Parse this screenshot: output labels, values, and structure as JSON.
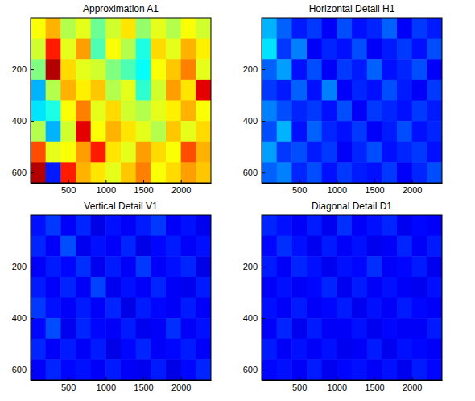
{
  "chart_data": [
    {
      "type": "heatmap",
      "title": "Approximation A1",
      "x": [
        100,
        300,
        500,
        700,
        900,
        1100,
        1300,
        1500,
        1700,
        1900,
        2100,
        2300
      ],
      "y": [
        40,
        120,
        200,
        280,
        360,
        440,
        520,
        600
      ],
      "values": [
        [
          0.62,
          0.7,
          0.55,
          0.6,
          0.48,
          0.58,
          0.65,
          0.52,
          0.6,
          0.55,
          0.62,
          0.58
        ],
        [
          0.58,
          0.85,
          0.6,
          0.72,
          0.45,
          0.62,
          0.55,
          0.4,
          0.66,
          0.6,
          0.7,
          0.64
        ],
        [
          0.5,
          0.95,
          0.66,
          0.6,
          0.58,
          0.5,
          0.45,
          0.38,
          0.62,
          0.68,
          0.75,
          0.6
        ],
        [
          0.3,
          0.55,
          0.7,
          0.64,
          0.68,
          0.55,
          0.6,
          0.42,
          0.58,
          0.72,
          0.65,
          0.9
        ],
        [
          0.35,
          0.4,
          0.62,
          0.75,
          0.6,
          0.66,
          0.58,
          0.55,
          0.6,
          0.64,
          0.7,
          0.62
        ],
        [
          0.55,
          0.3,
          0.58,
          0.9,
          0.62,
          0.7,
          0.65,
          0.6,
          0.55,
          0.68,
          0.6,
          0.66
        ],
        [
          0.8,
          0.6,
          0.62,
          0.72,
          0.85,
          0.65,
          0.6,
          0.72,
          0.66,
          0.62,
          0.8,
          0.7
        ],
        [
          0.95,
          0.15,
          0.85,
          0.7,
          0.65,
          0.6,
          0.68,
          0.75,
          0.62,
          0.66,
          0.72,
          0.68
        ]
      ],
      "xlim": [
        0,
        2400
      ],
      "ylim": [
        0,
        640
      ],
      "xticks": [
        500,
        1000,
        1500,
        2000
      ],
      "yticks": [
        200,
        400,
        600
      ],
      "clim": [
        0,
        1
      ]
    },
    {
      "type": "heatmap",
      "title": "Horizontal Detail H1",
      "x": [
        100,
        300,
        500,
        700,
        900,
        1100,
        1300,
        1500,
        1700,
        1900,
        2100,
        2300
      ],
      "y": [
        40,
        120,
        200,
        280,
        360,
        440,
        520,
        600
      ],
      "values": [
        [
          0.3,
          0.22,
          0.15,
          0.18,
          0.12,
          0.2,
          0.14,
          0.16,
          0.22,
          0.12,
          0.18,
          0.15
        ],
        [
          0.35,
          0.18,
          0.25,
          0.12,
          0.16,
          0.14,
          0.2,
          0.12,
          0.15,
          0.18,
          0.14,
          0.2
        ],
        [
          0.22,
          0.28,
          0.14,
          0.2,
          0.12,
          0.18,
          0.15,
          0.22,
          0.14,
          0.16,
          0.2,
          0.12
        ],
        [
          0.18,
          0.15,
          0.22,
          0.14,
          0.25,
          0.12,
          0.16,
          0.14,
          0.2,
          0.15,
          0.12,
          0.18
        ],
        [
          0.25,
          0.2,
          0.16,
          0.18,
          0.14,
          0.2,
          0.12,
          0.18,
          0.16,
          0.14,
          0.18,
          0.15
        ],
        [
          0.2,
          0.3,
          0.14,
          0.22,
          0.16,
          0.14,
          0.18,
          0.12,
          0.15,
          0.2,
          0.14,
          0.16
        ],
        [
          0.28,
          0.18,
          0.2,
          0.15,
          0.18,
          0.12,
          0.16,
          0.2,
          0.14,
          0.16,
          0.18,
          0.14
        ],
        [
          0.22,
          0.25,
          0.16,
          0.2,
          0.14,
          0.18,
          0.15,
          0.14,
          0.18,
          0.12,
          0.16,
          0.2
        ]
      ],
      "xlim": [
        0,
        2400
      ],
      "ylim": [
        0,
        640
      ],
      "xticks": [
        500,
        1000,
        1500,
        2000
      ],
      "yticks": [
        200,
        400,
        600
      ],
      "clim": [
        0,
        1
      ]
    },
    {
      "type": "heatmap",
      "title": "Vertical Detail V1",
      "x": [
        100,
        300,
        500,
        700,
        900,
        1100,
        1300,
        1500,
        1700,
        1900,
        2100,
        2300
      ],
      "y": [
        40,
        120,
        200,
        280,
        360,
        440,
        520,
        600
      ],
      "values": [
        [
          0.14,
          0.18,
          0.12,
          0.16,
          0.1,
          0.14,
          0.12,
          0.15,
          0.18,
          0.12,
          0.14,
          0.11
        ],
        [
          0.16,
          0.12,
          0.2,
          0.11,
          0.14,
          0.12,
          0.16,
          0.1,
          0.13,
          0.15,
          0.12,
          0.14
        ],
        [
          0.12,
          0.15,
          0.13,
          0.17,
          0.11,
          0.15,
          0.12,
          0.18,
          0.12,
          0.14,
          0.16,
          0.1
        ],
        [
          0.15,
          0.12,
          0.16,
          0.12,
          0.19,
          0.11,
          0.14,
          0.12,
          0.16,
          0.12,
          0.11,
          0.15
        ],
        [
          0.18,
          0.14,
          0.12,
          0.15,
          0.12,
          0.16,
          0.1,
          0.15,
          0.13,
          0.12,
          0.15,
          0.12
        ],
        [
          0.13,
          0.2,
          0.11,
          0.16,
          0.13,
          0.12,
          0.15,
          0.11,
          0.12,
          0.17,
          0.12,
          0.14
        ],
        [
          0.16,
          0.12,
          0.15,
          0.12,
          0.15,
          0.1,
          0.13,
          0.16,
          0.12,
          0.13,
          0.15,
          0.12
        ],
        [
          0.12,
          0.16,
          0.13,
          0.14,
          0.12,
          0.15,
          0.12,
          0.11,
          0.15,
          0.1,
          0.13,
          0.16
        ]
      ],
      "xlim": [
        0,
        2400
      ],
      "ylim": [
        0,
        640
      ],
      "xticks": [
        500,
        1000,
        1500,
        2000
      ],
      "yticks": [
        200,
        400,
        600
      ],
      "clim": [
        0,
        1
      ]
    },
    {
      "type": "heatmap",
      "title": "Diagonal Detail D1",
      "x": [
        100,
        300,
        500,
        700,
        900,
        1100,
        1300,
        1500,
        1700,
        1900,
        2100,
        2300
      ],
      "y": [
        40,
        120,
        200,
        280,
        360,
        440,
        520,
        600
      ],
      "values": [
        [
          0.16,
          0.14,
          0.12,
          0.15,
          0.11,
          0.17,
          0.12,
          0.14,
          0.16,
          0.11,
          0.13,
          0.12
        ],
        [
          0.13,
          0.17,
          0.14,
          0.11,
          0.15,
          0.12,
          0.14,
          0.11,
          0.12,
          0.16,
          0.12,
          0.15
        ],
        [
          0.15,
          0.12,
          0.16,
          0.14,
          0.11,
          0.14,
          0.13,
          0.17,
          0.12,
          0.13,
          0.15,
          0.11
        ],
        [
          0.12,
          0.14,
          0.12,
          0.13,
          0.16,
          0.11,
          0.15,
          0.12,
          0.14,
          0.12,
          0.11,
          0.14
        ],
        [
          0.14,
          0.12,
          0.15,
          0.12,
          0.13,
          0.15,
          0.11,
          0.14,
          0.12,
          0.15,
          0.13,
          0.12
        ],
        [
          0.12,
          0.16,
          0.11,
          0.15,
          0.12,
          0.12,
          0.14,
          0.11,
          0.13,
          0.12,
          0.12,
          0.15
        ],
        [
          0.15,
          0.12,
          0.14,
          0.12,
          0.14,
          0.11,
          0.12,
          0.15,
          0.11,
          0.14,
          0.13,
          0.12
        ],
        [
          0.13,
          0.14,
          0.12,
          0.15,
          0.11,
          0.13,
          0.14,
          0.12,
          0.14,
          0.11,
          0.15,
          0.13
        ]
      ],
      "xlim": [
        0,
        2400
      ],
      "ylim": [
        0,
        640
      ],
      "xticks": [
        500,
        1000,
        1500,
        2000
      ],
      "yticks": [
        200,
        400,
        600
      ],
      "clim": [
        0,
        1
      ]
    }
  ]
}
